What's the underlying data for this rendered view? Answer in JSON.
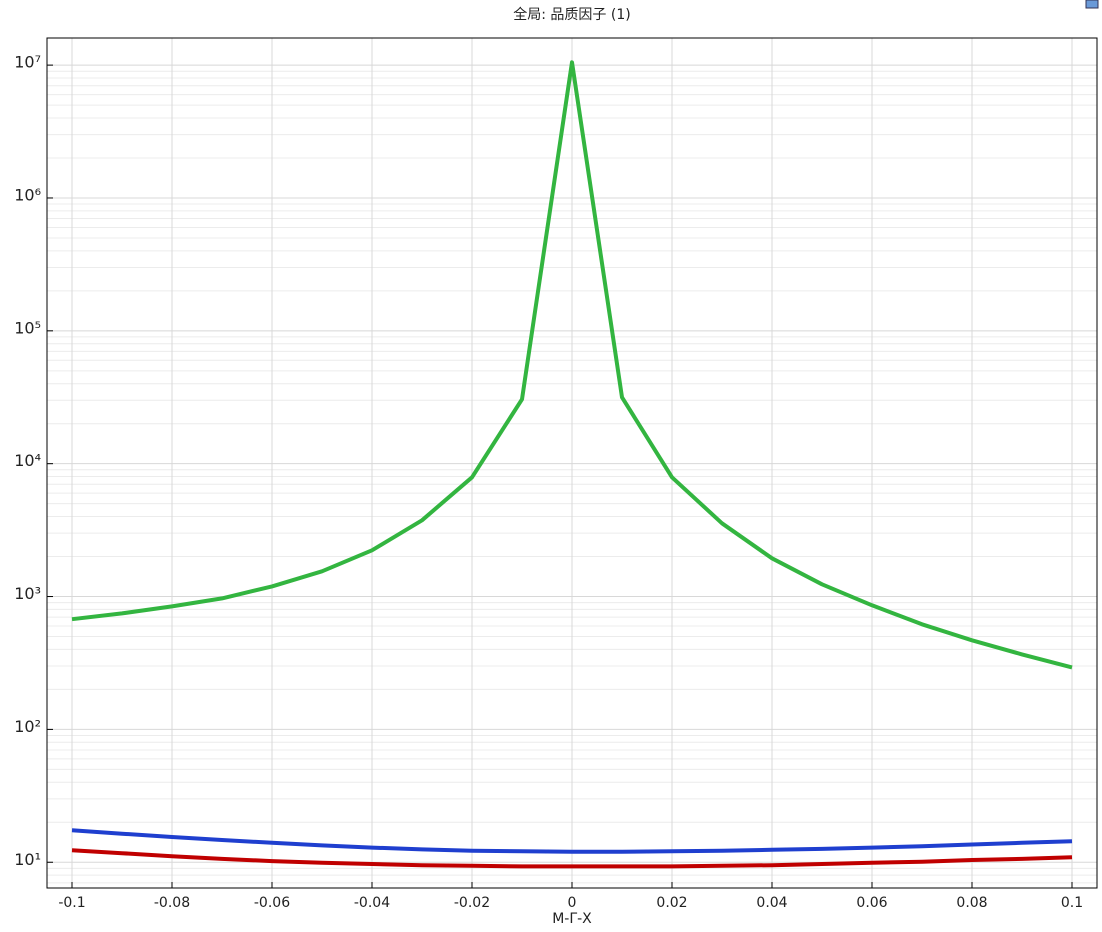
{
  "chart_data": {
    "type": "line",
    "title": "全局: 品质因子 (1)",
    "x_label": "M-Γ-X",
    "x": [
      -0.1,
      -0.09,
      -0.08,
      -0.07,
      -0.06,
      -0.05,
      -0.04,
      -0.03,
      -0.02,
      -0.01,
      0,
      0.01,
      0.02,
      0.03,
      0.04,
      0.05,
      0.06,
      0.07,
      0.08,
      0.09,
      0.1
    ],
    "series": [
      {
        "color": "#33b540",
        "values": [
          675,
          747,
          843,
          969,
          1193,
          1549,
          2230,
          3750,
          7900,
          30500,
          10500000,
          31600,
          7900,
          3560,
          1940,
          1237,
          859,
          618,
          468,
          367,
          293
        ]
      },
      {
        "color": "#1f3fcf",
        "values": [
          17.4,
          16.4,
          15.5,
          14.7,
          14.0,
          13.4,
          12.9,
          12.5,
          12.2,
          12.1,
          12.0,
          12.0,
          12.1,
          12.2,
          12.4,
          12.6,
          12.9,
          13.2,
          13.6,
          14.0,
          14.4
        ]
      },
      {
        "color": "#c00000",
        "values": [
          12.3,
          11.7,
          11.1,
          10.6,
          10.2,
          9.9,
          9.7,
          9.5,
          9.4,
          9.3,
          9.3,
          9.3,
          9.3,
          9.4,
          9.5,
          9.7,
          9.9,
          10.1,
          10.4,
          10.6,
          10.9
        ]
      }
    ],
    "xlim": [
      -0.105,
      0.105
    ],
    "xticks": [
      -0.1,
      -0.08,
      -0.06,
      -0.04,
      -0.02,
      0,
      0.02,
      0.04,
      0.06,
      0.08,
      0.1
    ],
    "ylim": [
      6.4,
      16000000
    ],
    "log_y": true,
    "grid": true,
    "yticks": [
      {
        "value": 10,
        "label": "10¹"
      },
      {
        "value": 100,
        "label": "10²"
      },
      {
        "value": 1000,
        "label": "10³"
      },
      {
        "value": 10000,
        "label": "10⁴"
      },
      {
        "value": 100000,
        "label": "10⁵"
      },
      {
        "value": 1000000,
        "label": "10⁶"
      },
      {
        "value": 10000000,
        "label": "10⁷"
      }
    ]
  }
}
